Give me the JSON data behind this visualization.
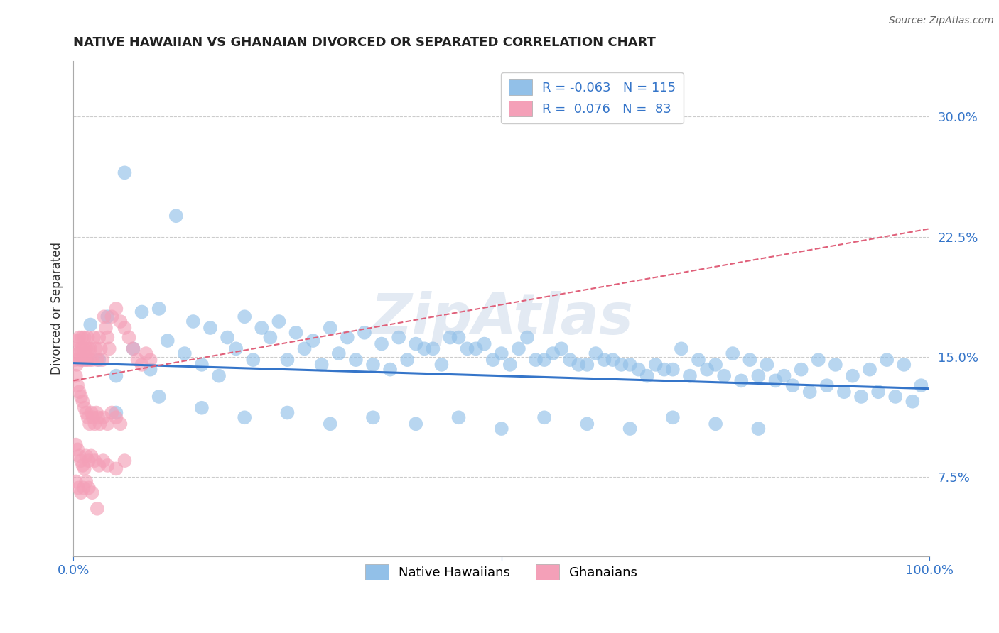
{
  "title": "NATIVE HAWAIIAN VS GHANAIAN DIVORCED OR SEPARATED CORRELATION CHART",
  "source": "Source: ZipAtlas.com",
  "ylabel": "Divorced or Separated",
  "ytick_labels": [
    "7.5%",
    "15.0%",
    "22.5%",
    "30.0%"
  ],
  "ytick_values": [
    0.075,
    0.15,
    0.225,
    0.3
  ],
  "blue_color": "#92C0E8",
  "pink_color": "#F4A0B8",
  "blue_line_color": "#3575C9",
  "pink_line_color": "#E0607A",
  "grid_color": "#CCCCCC",
  "watermark": "ZipAtlas",
  "xmin": 0.0,
  "xmax": 1.0,
  "ymin": 0.025,
  "ymax": 0.335,
  "blue_trend_x": [
    0.0,
    1.0
  ],
  "blue_trend_y": [
    0.146,
    0.13
  ],
  "pink_trend_x": [
    0.0,
    1.0
  ],
  "pink_trend_y": [
    0.135,
    0.23
  ],
  "blue_scatter_x": [
    0.03,
    0.05,
    0.07,
    0.09,
    0.11,
    0.13,
    0.15,
    0.17,
    0.19,
    0.21,
    0.23,
    0.25,
    0.27,
    0.29,
    0.31,
    0.33,
    0.35,
    0.37,
    0.39,
    0.41,
    0.43,
    0.45,
    0.47,
    0.49,
    0.51,
    0.53,
    0.55,
    0.57,
    0.59,
    0.61,
    0.63,
    0.65,
    0.67,
    0.69,
    0.71,
    0.73,
    0.75,
    0.77,
    0.79,
    0.81,
    0.83,
    0.85,
    0.87,
    0.89,
    0.91,
    0.93,
    0.95,
    0.97,
    0.99,
    0.02,
    0.04,
    0.06,
    0.08,
    0.1,
    0.12,
    0.14,
    0.16,
    0.18,
    0.2,
    0.22,
    0.24,
    0.26,
    0.28,
    0.3,
    0.32,
    0.34,
    0.36,
    0.38,
    0.4,
    0.42,
    0.44,
    0.46,
    0.48,
    0.5,
    0.52,
    0.54,
    0.56,
    0.58,
    0.6,
    0.62,
    0.64,
    0.66,
    0.68,
    0.7,
    0.72,
    0.74,
    0.76,
    0.78,
    0.8,
    0.82,
    0.84,
    0.86,
    0.88,
    0.9,
    0.92,
    0.94,
    0.96,
    0.98,
    0.05,
    0.1,
    0.15,
    0.2,
    0.25,
    0.3,
    0.35,
    0.4,
    0.45,
    0.5,
    0.55,
    0.6,
    0.65,
    0.7,
    0.75,
    0.8
  ],
  "blue_scatter_y": [
    0.148,
    0.138,
    0.155,
    0.142,
    0.16,
    0.152,
    0.145,
    0.138,
    0.155,
    0.148,
    0.162,
    0.148,
    0.155,
    0.145,
    0.152,
    0.148,
    0.145,
    0.142,
    0.148,
    0.155,
    0.145,
    0.162,
    0.155,
    0.148,
    0.145,
    0.162,
    0.148,
    0.155,
    0.145,
    0.152,
    0.148,
    0.145,
    0.138,
    0.142,
    0.155,
    0.148,
    0.145,
    0.152,
    0.148,
    0.145,
    0.138,
    0.142,
    0.148,
    0.145,
    0.138,
    0.142,
    0.148,
    0.145,
    0.132,
    0.17,
    0.175,
    0.265,
    0.178,
    0.18,
    0.238,
    0.172,
    0.168,
    0.162,
    0.175,
    0.168,
    0.172,
    0.165,
    0.16,
    0.168,
    0.162,
    0.165,
    0.158,
    0.162,
    0.158,
    0.155,
    0.162,
    0.155,
    0.158,
    0.152,
    0.155,
    0.148,
    0.152,
    0.148,
    0.145,
    0.148,
    0.145,
    0.142,
    0.145,
    0.142,
    0.138,
    0.142,
    0.138,
    0.135,
    0.138,
    0.135,
    0.132,
    0.128,
    0.132,
    0.128,
    0.125,
    0.128,
    0.125,
    0.122,
    0.115,
    0.125,
    0.118,
    0.112,
    0.115,
    0.108,
    0.112,
    0.108,
    0.112,
    0.105,
    0.112,
    0.108,
    0.105,
    0.112,
    0.108,
    0.105
  ],
  "pink_scatter_x": [
    0.002,
    0.003,
    0.004,
    0.005,
    0.006,
    0.007,
    0.008,
    0.009,
    0.01,
    0.011,
    0.012,
    0.013,
    0.014,
    0.015,
    0.016,
    0.017,
    0.018,
    0.019,
    0.02,
    0.022,
    0.024,
    0.026,
    0.028,
    0.03,
    0.032,
    0.034,
    0.036,
    0.038,
    0.04,
    0.042,
    0.045,
    0.05,
    0.055,
    0.06,
    0.065,
    0.07,
    0.075,
    0.08,
    0.085,
    0.09,
    0.003,
    0.005,
    0.007,
    0.009,
    0.011,
    0.013,
    0.015,
    0.017,
    0.019,
    0.021,
    0.023,
    0.025,
    0.027,
    0.029,
    0.031,
    0.035,
    0.04,
    0.045,
    0.05,
    0.055,
    0.003,
    0.005,
    0.007,
    0.009,
    0.011,
    0.013,
    0.015,
    0.018,
    0.021,
    0.025,
    0.03,
    0.035,
    0.04,
    0.05,
    0.06,
    0.003,
    0.006,
    0.009,
    0.012,
    0.015,
    0.018,
    0.022,
    0.028
  ],
  "pink_scatter_y": [
    0.148,
    0.155,
    0.145,
    0.16,
    0.152,
    0.162,
    0.148,
    0.155,
    0.162,
    0.148,
    0.155,
    0.162,
    0.148,
    0.155,
    0.148,
    0.162,
    0.155,
    0.148,
    0.155,
    0.148,
    0.162,
    0.155,
    0.148,
    0.162,
    0.155,
    0.148,
    0.175,
    0.168,
    0.162,
    0.155,
    0.175,
    0.18,
    0.172,
    0.168,
    0.162,
    0.155,
    0.148,
    0.145,
    0.152,
    0.148,
    0.138,
    0.132,
    0.128,
    0.125,
    0.122,
    0.118,
    0.115,
    0.112,
    0.108,
    0.115,
    0.112,
    0.108,
    0.115,
    0.112,
    0.108,
    0.112,
    0.108,
    0.115,
    0.112,
    0.108,
    0.095,
    0.092,
    0.088,
    0.085,
    0.082,
    0.08,
    0.088,
    0.085,
    0.088,
    0.085,
    0.082,
    0.085,
    0.082,
    0.08,
    0.085,
    0.072,
    0.068,
    0.065,
    0.068,
    0.072,
    0.068,
    0.065,
    0.055
  ]
}
